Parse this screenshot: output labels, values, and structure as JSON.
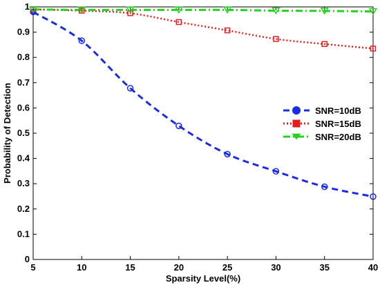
{
  "chart_data": {
    "type": "line",
    "title": "",
    "xlabel": "Sparsity Level(%)",
    "ylabel": "Probability of Detection",
    "x": [
      5,
      10,
      15,
      20,
      25,
      30,
      35,
      40
    ],
    "xlim": [
      5,
      40
    ],
    "ylim": [
      0,
      1
    ],
    "xticks": [
      "5",
      "10",
      "15",
      "20",
      "25",
      "30",
      "35",
      "40"
    ],
    "yticks": [
      "0",
      "0.1",
      "0.2",
      "0.3",
      "0.4",
      "0.5",
      "0.6",
      "0.7",
      "0.8",
      "0.9",
      "1"
    ],
    "grid": false,
    "legend_position": "center-right",
    "series": [
      {
        "name": "SNR=10dB",
        "values": [
          0.98,
          0.866,
          0.678,
          0.529,
          0.417,
          0.349,
          0.288,
          0.249
        ],
        "color": "#1a2be6",
        "line_style": "dashed",
        "marker": "circle"
      },
      {
        "name": "SNR=15dB",
        "values": [
          0.99,
          0.985,
          0.975,
          0.94,
          0.907,
          0.873,
          0.853,
          0.835
        ],
        "color": "#e81c1c",
        "line_style": "dotted",
        "marker": "square"
      },
      {
        "name": "SNR=20dB",
        "values": [
          0.99,
          0.988,
          0.988,
          0.988,
          0.988,
          0.985,
          0.984,
          0.982
        ],
        "color": "#22d41c",
        "line_style": "dash-dot",
        "marker": "triangle-down"
      }
    ]
  }
}
